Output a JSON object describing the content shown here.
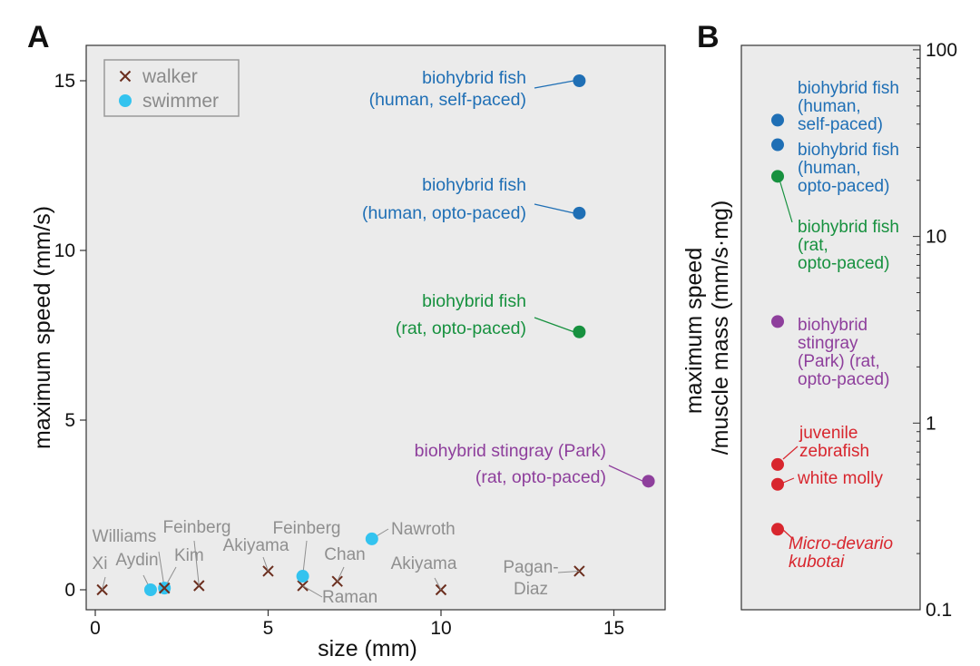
{
  "panel_a_letter": "A",
  "panel_b_letter": "B",
  "chart_data": [
    {
      "type": "scatter",
      "xlabel": "size (mm)",
      "ylabel": "maximum speed (mm/s)",
      "xlim": [
        -0.5,
        16.5
      ],
      "ylim": [
        -0.5,
        16
      ],
      "xticks": [
        0,
        5,
        10,
        15
      ],
      "yticks": [
        0,
        5,
        10,
        15
      ],
      "grid": false,
      "legend": {
        "placement": "top-left",
        "entries": [
          {
            "name": "walker",
            "marker": "x",
            "color": "#6b2e1e"
          },
          {
            "name": "swimmer",
            "marker": "circle",
            "color": "#33c3ef"
          }
        ]
      },
      "highlighted": [
        {
          "lines": [
            "biohybrid fish",
            "(human, self-paced)"
          ],
          "x": 14,
          "y": 15.0,
          "color": "#1f6fb5"
        },
        {
          "lines": [
            "biohybrid fish",
            "(human, opto-paced)"
          ],
          "x": 14,
          "y": 11.1,
          "color": "#1f6fb5"
        },
        {
          "lines": [
            "biohybrid fish",
            "(rat, opto-paced)"
          ],
          "x": 14,
          "y": 7.6,
          "color": "#17913f"
        },
        {
          "lines": [
            "biohybrid stingray (Park)",
            "(rat, opto-paced)"
          ],
          "x": 16,
          "y": 3.2,
          "color": "#8e3f9c"
        }
      ],
      "walkers": [
        {
          "label": "Xi",
          "x": 0.2,
          "y": 0.0
        },
        {
          "label": "Kim",
          "x": 2.0,
          "y": 0.05
        },
        {
          "label": "Feinberg",
          "x": 3.0,
          "y": 0.12
        },
        {
          "label": "Akiyama",
          "x": 5.0,
          "y": 0.55
        },
        {
          "label": "Raman",
          "x": 6.0,
          "y": 0.12
        },
        {
          "label": "Chan",
          "x": 7.0,
          "y": 0.25
        },
        {
          "label": "Akiyama",
          "x": 10.0,
          "y": 0.0
        },
        {
          "label": "Pagan-\nDiaz",
          "x": 14.0,
          "y": 0.55
        }
      ],
      "swimmers": [
        {
          "label": "Aydin",
          "x": 1.6,
          "y": 0.0
        },
        {
          "label": "Williams",
          "x": 2.0,
          "y": 0.05
        },
        {
          "label": "Feinberg",
          "x": 6.0,
          "y": 0.4
        },
        {
          "label": "Nawroth",
          "x": 8.0,
          "y": 1.5
        }
      ]
    },
    {
      "type": "scatter",
      "ylabel": "maximum speed\n/muscle mass (mm/s·mg)",
      "yscale": "log",
      "ylim": [
        0.1,
        100
      ],
      "yticks": [
        0.1,
        1,
        10,
        100
      ],
      "ytick_labels": [
        "0.1",
        "1",
        "10",
        "100"
      ],
      "grid": false,
      "points": [
        {
          "lines": [
            "biohybrid fish",
            "(human,",
            "self-paced)"
          ],
          "y": 42,
          "color": "#1f6fb5",
          "italic": false
        },
        {
          "lines": [
            "biohybrid fish",
            "(human,",
            "opto-paced)"
          ],
          "y": 31,
          "color": "#1f6fb5",
          "italic": false
        },
        {
          "lines": [
            "biohybrid fish",
            "(rat,",
            "opto-paced)"
          ],
          "y": 21,
          "color": "#17913f",
          "italic": false
        },
        {
          "lines": [
            "biohybrid",
            "stingray",
            "(Park) (rat,",
            "opto-paced)"
          ],
          "y": 3.5,
          "color": "#8e3f9c",
          "italic": false
        },
        {
          "lines": [
            "juvenile",
            "zebrafish"
          ],
          "y": 0.6,
          "color": "#d8262e",
          "italic": false
        },
        {
          "lines": [
            "white molly"
          ],
          "y": 0.47,
          "color": "#d8262e",
          "italic": false
        },
        {
          "lines": [
            "Micro-devario",
            "kubotai"
          ],
          "y": 0.27,
          "color": "#d8262e",
          "italic": true
        }
      ]
    }
  ]
}
